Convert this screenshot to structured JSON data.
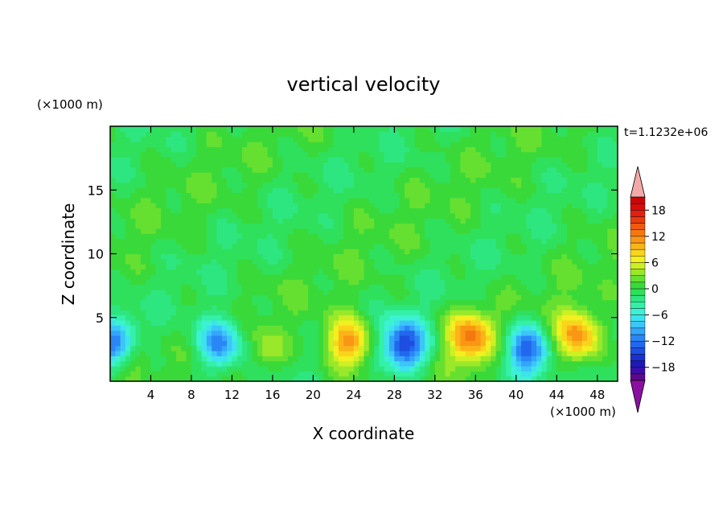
{
  "chart_data": {
    "type": "heatmap",
    "title": "vertical velocity",
    "xlabel": "X coordinate",
    "ylabel": "Z coordinate",
    "x_unit": "(×1000 m)",
    "y_unit": "(×1000 m)",
    "time_label": "t=1.1232e+06",
    "xlim": [
      0,
      50
    ],
    "ylim": [
      0,
      20
    ],
    "x_ticks": [
      4,
      8,
      12,
      16,
      20,
      24,
      28,
      32,
      36,
      40,
      44,
      48
    ],
    "y_ticks": [
      5,
      10,
      15
    ],
    "colorbar": {
      "levels": [
        -21,
        -19.5,
        -18,
        -16.5,
        -15,
        -13.5,
        -12,
        -10.5,
        -9,
        -7.5,
        -6,
        -4.5,
        -3,
        -1.5,
        0,
        1.5,
        3,
        4.5,
        6,
        7.5,
        9,
        10.5,
        12,
        13.5,
        15,
        16.5,
        18,
        19.5,
        21
      ],
      "tick_values": [
        -18,
        -12,
        -6,
        0,
        6,
        12,
        18
      ],
      "tick_labels": [
        "−18",
        "−12",
        "−6",
        "0",
        "6",
        "12",
        "18"
      ],
      "colors": [
        "#5a0a8c",
        "#3a0fa8",
        "#1f18b8",
        "#1a2fd0",
        "#1d4ee0",
        "#2268ee",
        "#2a86f6",
        "#33a6fa",
        "#3cc6f8",
        "#3ee2ee",
        "#3cf2d2",
        "#34f0a8",
        "#2ee680",
        "#2fe05c",
        "#3ad93a",
        "#66e030",
        "#9ae82a",
        "#cdf024",
        "#f2f020",
        "#f8d41c",
        "#fab418",
        "#fa9614",
        "#f47810",
        "#ee5a10",
        "#e63c10",
        "#e02010",
        "#d80c0c",
        "#c80808"
      ],
      "under_color": "#8a10a0",
      "over_color": "#f4a8a8"
    },
    "features": [
      {
        "kind": "updraft",
        "x_center": 23.5,
        "z_center": 3,
        "peak": 12
      },
      {
        "kind": "updraft",
        "x_center": 35.5,
        "z_center": 3.5,
        "peak": 12
      },
      {
        "kind": "updraft",
        "x_center": 46,
        "z_center": 3.5,
        "peak": 12
      },
      {
        "kind": "downdraft",
        "x_center": 29,
        "z_center": 2.8,
        "peak": -15
      },
      {
        "kind": "downdraft",
        "x_center": 41,
        "z_center": 2.5,
        "peak": -13
      },
      {
        "kind": "downdraft",
        "x_center": 10.8,
        "z_center": 3,
        "peak": -12
      },
      {
        "kind": "downdraft",
        "x_center": 0.5,
        "z_center": 3,
        "peak": -10
      },
      {
        "kind": "updraft",
        "x_center": 2.5,
        "z_center": 2,
        "peak": 4
      },
      {
        "kind": "updraft",
        "x_center": 15.5,
        "z_center": 2.5,
        "peak": 4
      }
    ]
  }
}
